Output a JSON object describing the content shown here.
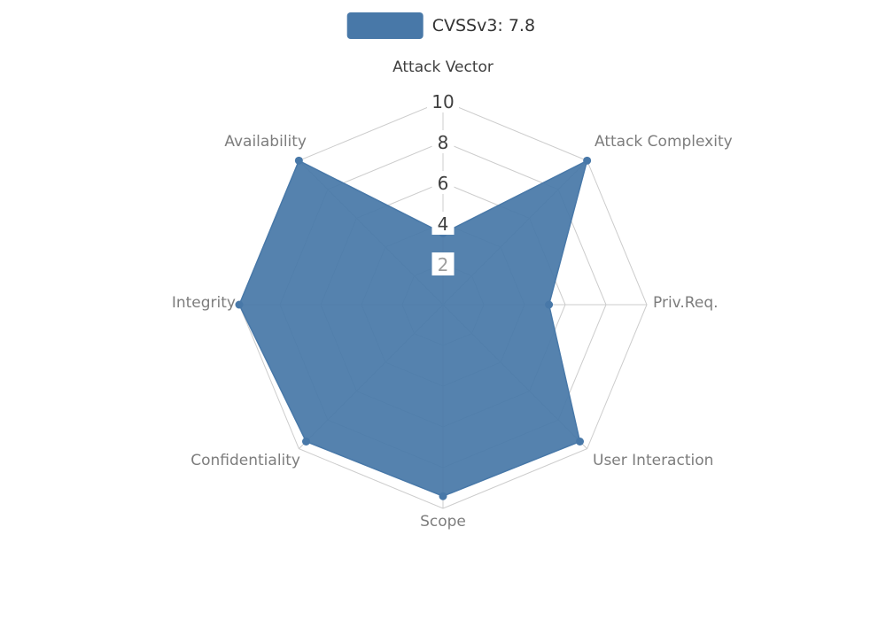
{
  "legend": {
    "label": "CVSSv3: 7.8",
    "color": "#4878a8"
  },
  "colors": {
    "series": "#4878a8",
    "grid": "#cccccc",
    "axis_label": "#7d7d7d",
    "axis_label_primary": "#3f3f3f",
    "tick": "#3f3f3f",
    "tick_muted": "#9e9e9e",
    "legend_text": "#333333",
    "background": "#ffffff"
  },
  "chart_data": {
    "type": "radar",
    "title": "",
    "legend_entries": [
      "CVSSv3: 7.8"
    ],
    "legend_position": "top",
    "axes": [
      "Attack Vector",
      "Attack Complexity",
      "Priv.Req.",
      "User Interaction",
      "Scope",
      "Confidentiality",
      "Integrity",
      "Availability"
    ],
    "series": [
      {
        "name": "CVSSv3: 7.8",
        "values": [
          3.5,
          10,
          5.2,
          9.5,
          9.4,
          9.5,
          10,
          10
        ],
        "color": "#4878a8",
        "fill_opacity": 0.93
      }
    ],
    "radial_ticks": [
      2,
      4,
      6,
      8,
      10
    ],
    "max": 10,
    "grid": true,
    "grid_shape": "polygon"
  }
}
